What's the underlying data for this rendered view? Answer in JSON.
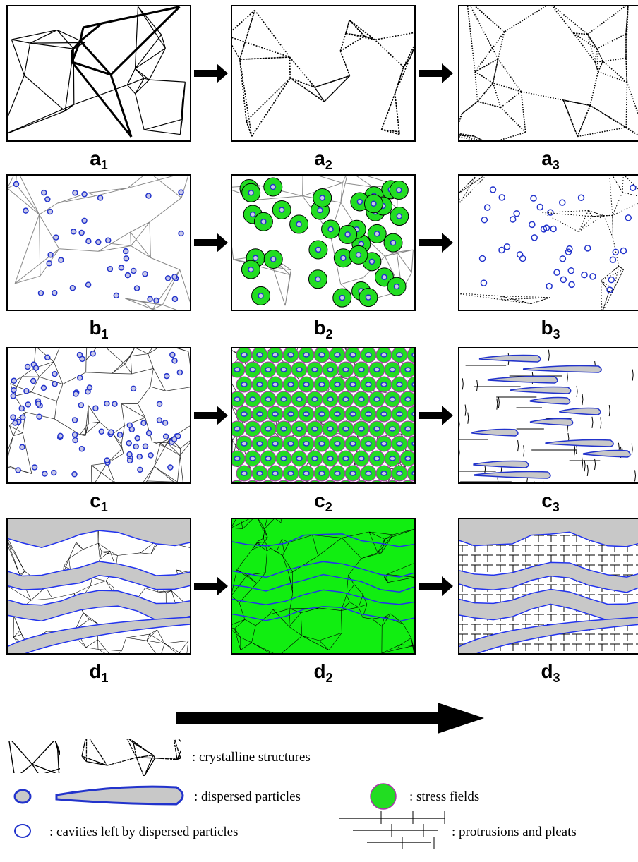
{
  "panels": [
    {
      "letter": "a",
      "sub": "1"
    },
    {
      "letter": "a",
      "sub": "2"
    },
    {
      "letter": "a",
      "sub": "3"
    },
    {
      "letter": "b",
      "sub": "1"
    },
    {
      "letter": "b",
      "sub": "2"
    },
    {
      "letter": "b",
      "sub": "3"
    },
    {
      "letter": "c",
      "sub": "1"
    },
    {
      "letter": "c",
      "sub": "2"
    },
    {
      "letter": "c",
      "sub": "3"
    },
    {
      "letter": "d",
      "sub": "1"
    },
    {
      "letter": "d",
      "sub": "2"
    },
    {
      "letter": "d",
      "sub": "3"
    }
  ],
  "legend": {
    "crystalline": ": crystalline structures",
    "particles": ": dispersed particles",
    "stress": ": stress fields",
    "cavities": ": cavities left by dispersed particles",
    "pleats": ": protrusions and pleats"
  }
}
